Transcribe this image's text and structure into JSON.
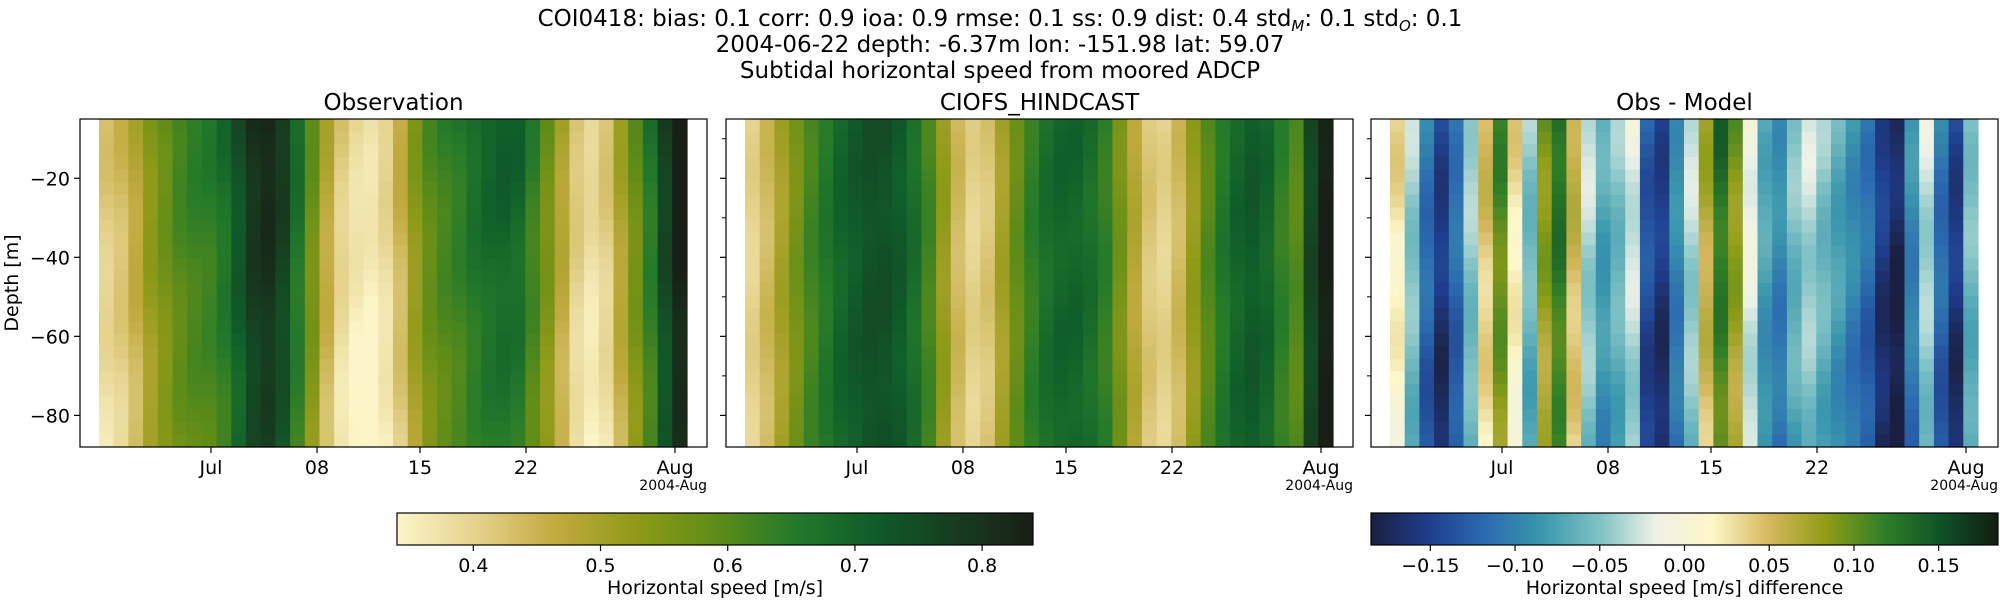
{
  "header": {
    "stats_line": "COI0418: bias: 0.1  corr: 0.9  ioa: 0.9  rmse: 0.1  ss: 0.9  dist: 0.4  std",
    "std_m_sub": "M",
    "std_m_val": ": 0.1  std",
    "std_o_sub": "O",
    "std_o_val": ": 0.1",
    "station_line": "2004-06-22 depth: -6.37m lon: -151.98 lat: 59.07",
    "subtitle": "Subtidal horizontal speed from moored ADCP"
  },
  "chart_data": [
    {
      "type": "heatmap",
      "title": "Observation",
      "ylabel": "Depth [m]",
      "yticks": [
        -20,
        -40,
        -60,
        -80
      ],
      "ylim": [
        -88,
        -5
      ],
      "x_tick_labels": [
        "Jul",
        "08",
        "15",
        "22",
        "Aug"
      ],
      "x_offset_label": "2004-Aug",
      "colormap": "speed",
      "time_profile_ms": [
        0.4,
        0.42,
        0.46,
        0.52,
        0.56,
        0.6,
        0.62,
        0.63,
        0.66,
        0.72,
        0.78,
        0.8,
        0.76,
        0.66,
        0.56,
        0.46,
        0.39,
        0.36,
        0.35,
        0.38,
        0.44,
        0.52,
        0.58,
        0.61,
        0.63,
        0.66,
        0.68,
        0.69,
        0.68,
        0.62,
        0.55,
        0.47,
        0.4,
        0.37,
        0.4,
        0.48,
        0.56,
        0.64,
        0.75,
        0.83
      ],
      "depth_trend": 0.06
    },
    {
      "type": "heatmap",
      "title": "CIOFS_HINDCAST",
      "ylim": [
        -88,
        -5
      ],
      "x_tick_labels": [
        "Jul",
        "08",
        "15",
        "22",
        "Aug"
      ],
      "x_offset_label": "2004-Aug",
      "colormap": "speed",
      "time_profile_ms": [
        0.4,
        0.44,
        0.5,
        0.56,
        0.62,
        0.66,
        0.7,
        0.72,
        0.74,
        0.74,
        0.72,
        0.68,
        0.62,
        0.52,
        0.44,
        0.4,
        0.42,
        0.5,
        0.58,
        0.64,
        0.68,
        0.7,
        0.7,
        0.68,
        0.64,
        0.56,
        0.48,
        0.42,
        0.4,
        0.44,
        0.52,
        0.6,
        0.66,
        0.7,
        0.72,
        0.7,
        0.64,
        0.6,
        0.76,
        0.84
      ],
      "depth_trend": 0.0
    },
    {
      "type": "heatmap",
      "title": "Obs - Model",
      "ylim": [
        -88,
        -5
      ],
      "x_tick_labels": [
        "Jul",
        "08",
        "15",
        "22",
        "Aug"
      ],
      "x_offset_label": "2004-Aug",
      "colormap": "difference",
      "time_profile_ms": [
        0.02,
        -0.05,
        -0.12,
        -0.16,
        -0.12,
        -0.05,
        0.04,
        0.1,
        0.02,
        -0.06,
        0.08,
        0.12,
        0.05,
        -0.04,
        -0.08,
        -0.06,
        -0.03,
        -0.14,
        -0.16,
        -0.1,
        -0.04,
        0.06,
        0.12,
        0.08,
        -0.02,
        -0.08,
        -0.1,
        -0.06,
        -0.04,
        -0.06,
        -0.08,
        -0.1,
        -0.12,
        -0.16,
        -0.18,
        -0.1,
        -0.04,
        -0.12,
        -0.16,
        -0.06
      ],
      "depth_trend": 0.03
    }
  ],
  "colorbars": {
    "speed": {
      "label": "Horizontal speed [m/s]",
      "range": [
        0.34,
        0.84
      ],
      "ticks": [
        0.4,
        0.5,
        0.6,
        0.7,
        0.8
      ],
      "tick_labels": [
        "0.4",
        "0.5",
        "0.6",
        "0.7",
        "0.8"
      ],
      "stops": [
        "#fcf5c9",
        "#e4d28d",
        "#c1aa3f",
        "#8f9a18",
        "#5f8c18",
        "#247a2a",
        "#0f5c2a",
        "#173d20",
        "#191f16"
      ]
    },
    "difference": {
      "label": "Horizontal speed [m/s] difference",
      "range": [
        -0.185,
        0.185
      ],
      "ticks": [
        -0.15,
        -0.1,
        -0.05,
        0.0,
        0.05,
        0.1,
        0.15
      ],
      "tick_labels": [
        "−0.15",
        "−0.10",
        "−0.05",
        "0.00",
        "0.05",
        "0.10",
        "0.15"
      ],
      "stops": [
        "#1b1f3f",
        "#1f3d8c",
        "#2b6bb0",
        "#3a97ad",
        "#7ec1c4",
        "#eef2e7",
        "#fdf6c8",
        "#d4b75c",
        "#8e9c16",
        "#2f7f28",
        "#0f5228",
        "#121e12"
      ]
    }
  }
}
